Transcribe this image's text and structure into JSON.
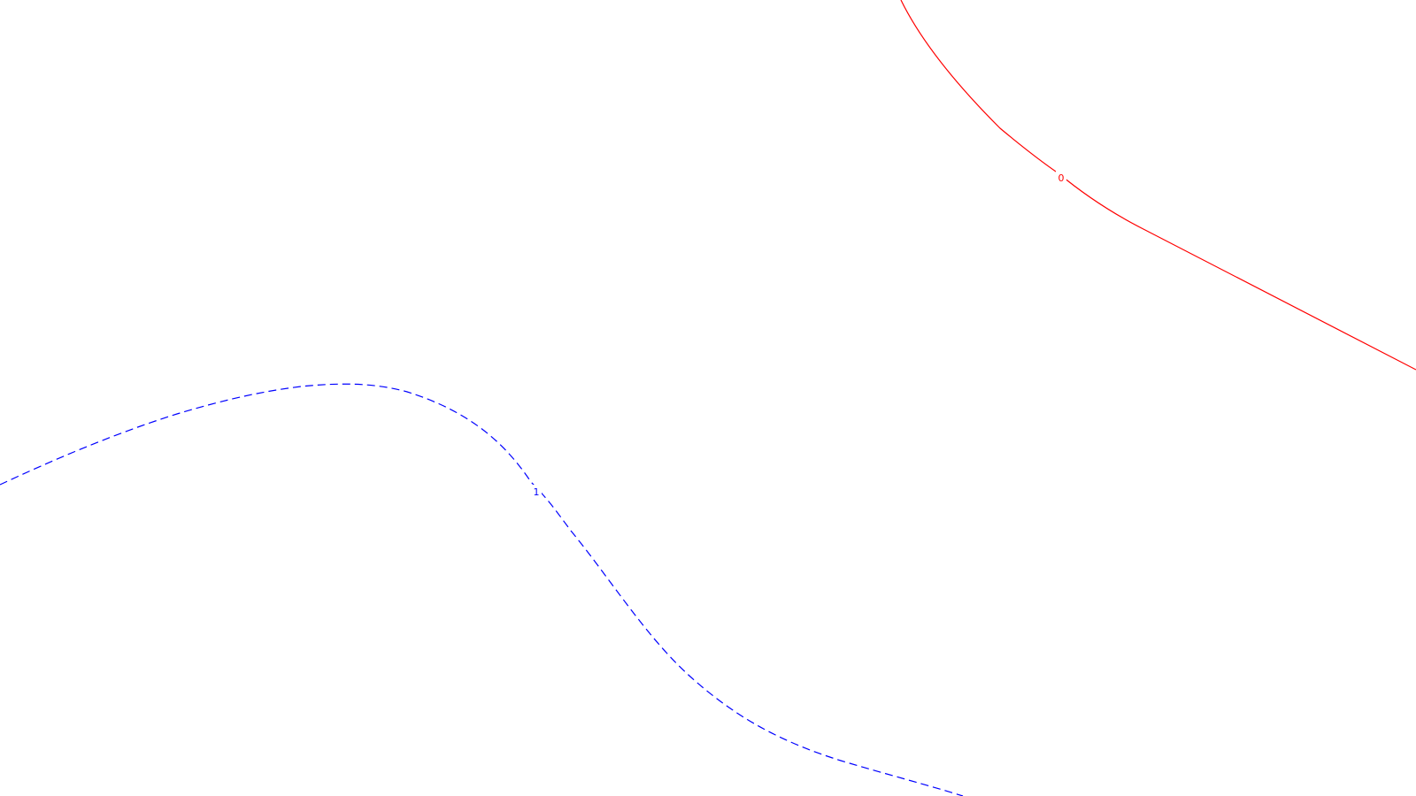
{
  "contours": [
    {
      "level_label": "0",
      "color": "#ff0000",
      "line_style": "solid"
    },
    {
      "level_label": "1",
      "color": "#0000ff",
      "line_style": "dashed"
    }
  ]
}
